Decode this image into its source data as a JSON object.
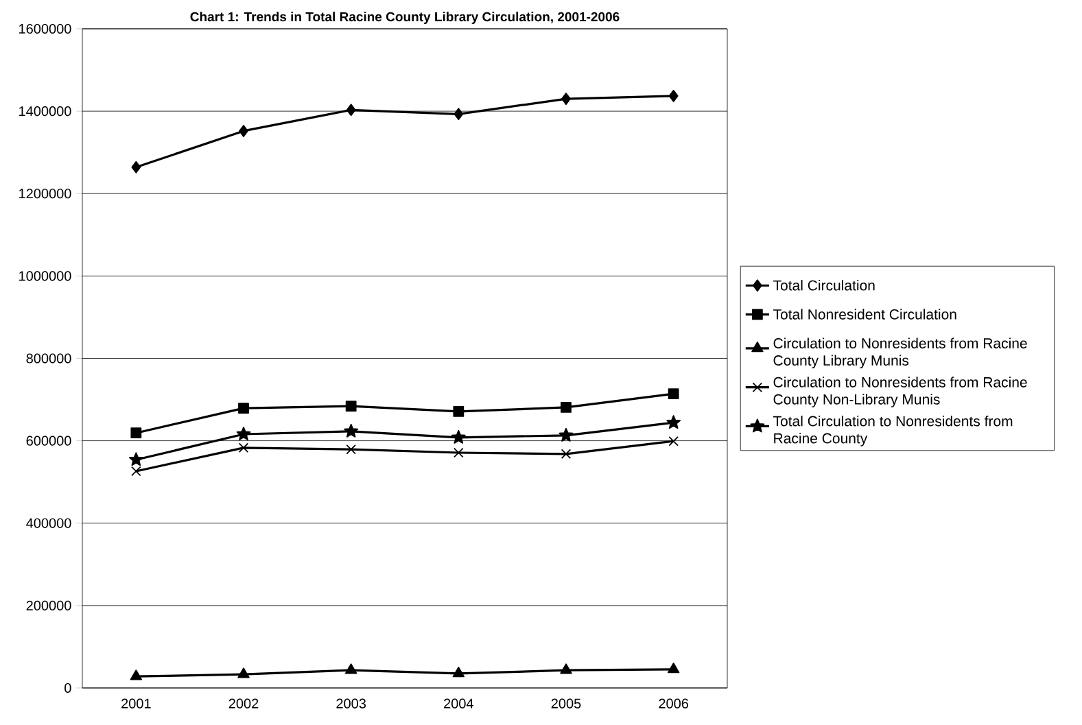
{
  "chart_data": {
    "type": "line",
    "title": "Chart 1: Trends in Total Racine County Library Circulation, 2001-2006",
    "categories": [
      "2001",
      "2002",
      "2003",
      "2004",
      "2005",
      "2006"
    ],
    "series": [
      {
        "name": "Total Circulation",
        "color": "#000000",
        "marker": "diamond",
        "values": [
          1264000,
          1352000,
          1403000,
          1393000,
          1430000,
          1437000
        ]
      },
      {
        "name": "Total Nonresident Circulation",
        "color": "#000000",
        "marker": "square",
        "values": [
          619000,
          679000,
          684000,
          671000,
          681000,
          714000
        ]
      },
      {
        "name": "Circulation to Nonresidents from Racine County Library Munis",
        "color": "#000000",
        "marker": "triangle",
        "values": [
          28000,
          33000,
          43000,
          35000,
          43000,
          45000
        ]
      },
      {
        "name": "Circulation to Nonresidents from Racine County Non-Library Munis",
        "color": "#000000",
        "marker": "cross",
        "values": [
          526000,
          583000,
          579000,
          571000,
          568000,
          599000
        ]
      },
      {
        "name": "Total Circulation to Nonresidents from Racine County",
        "color": "#000000",
        "marker": "star",
        "values": [
          554000,
          616000,
          623000,
          608000,
          613000,
          644000
        ]
      }
    ],
    "ylim": [
      0,
      1600000
    ],
    "yticks": [
      0,
      200000,
      400000,
      600000,
      800000,
      1000000,
      1200000,
      1400000,
      1600000
    ],
    "grid": "y",
    "legend": "right",
    "line_style": "solid"
  }
}
